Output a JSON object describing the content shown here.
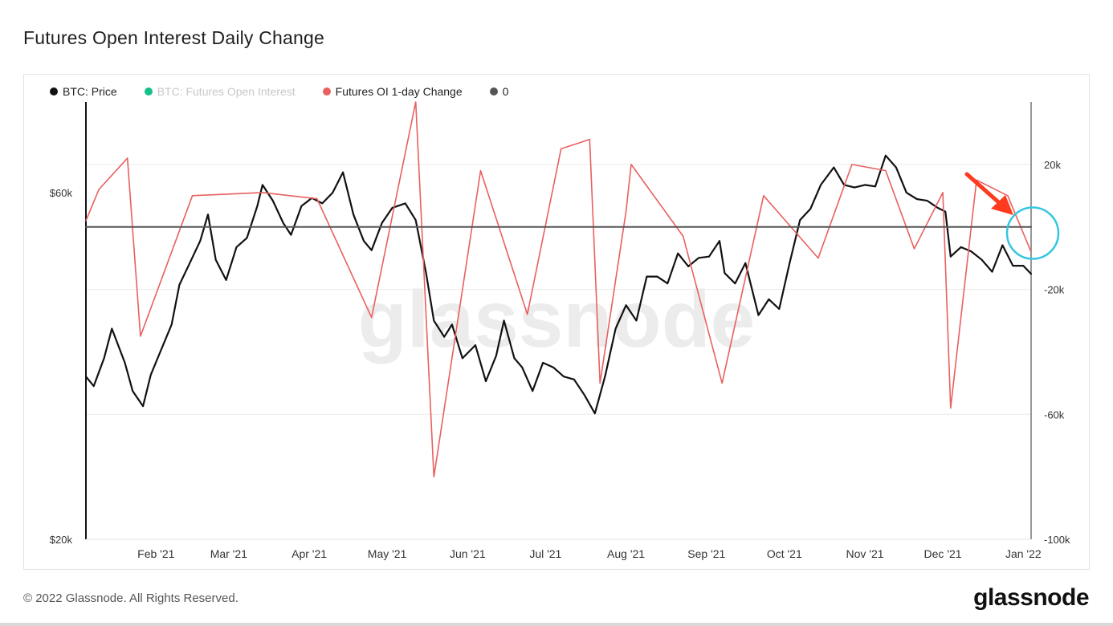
{
  "title": "Futures Open Interest Daily Change",
  "legend": [
    {
      "label": "BTC: Price",
      "color": "#111111",
      "muted": false
    },
    {
      "label": "BTC: Futures Open Interest",
      "color": "#17c08a",
      "muted": true
    },
    {
      "label": "Futures OI 1-day Change",
      "color": "#e8605f",
      "muted": false
    },
    {
      "label": "0",
      "color": "#555555",
      "muted": false
    }
  ],
  "watermark": "glassnode",
  "footer": {
    "copyright": "© 2022 Glassnode. All Rights Reserved.",
    "brand": "glassnode"
  },
  "chart_data": {
    "type": "line",
    "title": "Futures Open Interest Daily Change",
    "x_range": [
      "2021-01-05",
      "2022-01-04"
    ],
    "x_ticks": [
      "Feb '21",
      "Mar '21",
      "Apr '21",
      "May '21",
      "Jun '21",
      "Jul '21",
      "Aug '21",
      "Sep '21",
      "Oct '21",
      "Nov '21",
      "Dec '21",
      "Jan '22"
    ],
    "y_left": {
      "scale": "log",
      "range": [
        20000,
        80000
      ],
      "ticks": [
        "$20k",
        "$60k"
      ],
      "tick_values": [
        20000,
        60000
      ]
    },
    "y_right": {
      "scale": "linear",
      "range": [
        -100000,
        40000
      ],
      "ticks": [
        "20k",
        "-20k",
        "-60k",
        "-100k"
      ],
      "tick_values": [
        20000,
        -20000,
        -60000,
        -100000
      ]
    },
    "grid": true,
    "legend_position": "top-left",
    "annotations": [
      {
        "type": "arrow",
        "color": "#ff3b1f",
        "points_to": "end of series"
      },
      {
        "type": "circle",
        "color": "#35c6e0",
        "around": "Jan '22 end of series"
      }
    ],
    "series": [
      {
        "name": "BTC: Price",
        "axis": "left",
        "color": "#111111",
        "x": [
          "2021-01-05",
          "2021-01-08",
          "2021-01-12",
          "2021-01-15",
          "2021-01-20",
          "2021-01-23",
          "2021-01-27",
          "2021-01-30",
          "2021-02-03",
          "2021-02-07",
          "2021-02-10",
          "2021-02-14",
          "2021-02-18",
          "2021-02-21",
          "2021-02-24",
          "2021-02-28",
          "2021-03-04",
          "2021-03-08",
          "2021-03-12",
          "2021-03-14",
          "2021-03-18",
          "2021-03-22",
          "2021-03-25",
          "2021-03-29",
          "2021-04-02",
          "2021-04-06",
          "2021-04-10",
          "2021-04-14",
          "2021-04-18",
          "2021-04-22",
          "2021-04-25",
          "2021-04-29",
          "2021-05-03",
          "2021-05-08",
          "2021-05-12",
          "2021-05-16",
          "2021-05-19",
          "2021-05-23",
          "2021-05-26",
          "2021-05-30",
          "2021-06-04",
          "2021-06-08",
          "2021-06-12",
          "2021-06-15",
          "2021-06-19",
          "2021-06-22",
          "2021-06-26",
          "2021-06-30",
          "2021-07-04",
          "2021-07-08",
          "2021-07-12",
          "2021-07-16",
          "2021-07-20",
          "2021-07-24",
          "2021-07-28",
          "2021-08-01",
          "2021-08-05",
          "2021-08-09",
          "2021-08-13",
          "2021-08-17",
          "2021-08-21",
          "2021-08-25",
          "2021-08-29",
          "2021-09-02",
          "2021-09-06",
          "2021-09-08",
          "2021-09-12",
          "2021-09-16",
          "2021-09-21",
          "2021-09-25",
          "2021-09-29",
          "2021-10-03",
          "2021-10-07",
          "2021-10-11",
          "2021-10-15",
          "2021-10-20",
          "2021-10-24",
          "2021-10-28",
          "2021-11-01",
          "2021-11-05",
          "2021-11-09",
          "2021-11-13",
          "2021-11-17",
          "2021-11-21",
          "2021-11-25",
          "2021-11-29",
          "2021-12-02",
          "2021-12-04",
          "2021-12-08",
          "2021-12-12",
          "2021-12-16",
          "2021-12-20",
          "2021-12-24",
          "2021-12-28",
          "2022-01-01",
          "2022-01-04"
        ],
        "y": [
          33500,
          32500,
          35500,
          39000,
          35000,
          32000,
          30500,
          33700,
          36500,
          39500,
          44800,
          48000,
          51500,
          56000,
          48500,
          45500,
          50500,
          52000,
          57500,
          61500,
          58500,
          54500,
          52500,
          57500,
          59000,
          58000,
          60000,
          64000,
          56000,
          51500,
          50000,
          54500,
          57200,
          58000,
          55000,
          46500,
          40000,
          38000,
          39500,
          35500,
          37000,
          33000,
          35800,
          40000,
          35500,
          34500,
          32000,
          35000,
          34500,
          33500,
          33200,
          31600,
          29800,
          33600,
          39000,
          42000,
          40000,
          46000,
          46000,
          45000,
          49500,
          47500,
          48800,
          49000,
          51500,
          46500,
          45000,
          48000,
          40700,
          42800,
          41500,
          48000,
          55000,
          57000,
          61500,
          65000,
          61500,
          61000,
          61500,
          61200,
          67500,
          65000,
          60000,
          58800,
          58500,
          57200,
          56500,
          49000,
          50500,
          49800,
          48500,
          46700,
          50800,
          47600,
          47600,
          46400
        ]
      },
      {
        "name": "Futures OI 1-day Change",
        "axis": "right",
        "color": "#e8605f",
        "x": [
          "2021-01-05",
          "2021-01-10",
          "2021-01-21",
          "2021-01-26",
          "2021-02-15",
          "2021-03-14",
          "2021-04-04",
          "2021-04-25",
          "2021-05-12",
          "2021-05-19",
          "2021-06-06",
          "2021-06-24",
          "2021-07-07",
          "2021-07-18",
          "2021-07-22",
          "2021-08-01",
          "2021-08-03",
          "2021-08-23",
          "2021-09-07",
          "2021-09-23",
          "2021-10-14",
          "2021-10-27",
          "2021-11-09",
          "2021-11-20",
          "2021-12-01",
          "2021-12-04",
          "2021-12-14",
          "2021-12-26",
          "2022-01-04"
        ],
        "y": [
          2000,
          12000,
          22000,
          -35000,
          10000,
          11000,
          9000,
          -29000,
          40000,
          -80000,
          18000,
          -28000,
          25000,
          28000,
          -50000,
          5000,
          20000,
          -3000,
          -50000,
          10000,
          -10000,
          20000,
          18000,
          -7000,
          11000,
          -58000,
          15000,
          10000,
          -8000
        ]
      },
      {
        "name": "0",
        "axis": "right",
        "color": "#555555",
        "x": [
          "2021-01-05",
          "2022-01-04"
        ],
        "y": [
          0,
          0
        ]
      }
    ]
  }
}
